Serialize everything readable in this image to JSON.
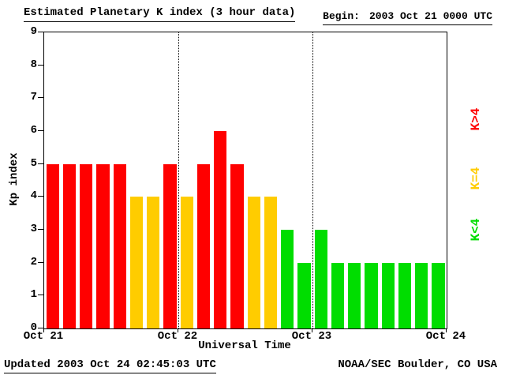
{
  "header": {
    "title": "Estimated Planetary K index (3 hour data)",
    "begin_label": "Begin:",
    "begin_value": "2003 Oct 21 0000 UTC"
  },
  "footer": {
    "updated_text": "Updated 2003 Oct 24 02:45:03 UTC",
    "attribution": "NOAA/SEC Boulder, CO USA"
  },
  "chart_data": {
    "type": "bar",
    "title": "Estimated Planetary K index (3 hour data)",
    "xlabel": "Universal Time",
    "ylabel": "Kp index",
    "ylim": [
      0,
      9
    ],
    "yticks": [
      0,
      1,
      2,
      3,
      4,
      5,
      6,
      7,
      8,
      9
    ],
    "xticks": [
      "Oct 21",
      "Oct 22",
      "Oct 23",
      "Oct 24"
    ],
    "bar_interval_hours": 3,
    "values": [
      5,
      5,
      5,
      5,
      5,
      4,
      4,
      5,
      4,
      5,
      6,
      5,
      4,
      4,
      3,
      2,
      3,
      2,
      2,
      2,
      2,
      2,
      2,
      2
    ],
    "colors": {
      "k_gt_4": "#ff0000",
      "k_eq_4": "#ffcc00",
      "k_lt_4": "#00dd00"
    },
    "legend": [
      {
        "label": "K>4",
        "color": "#ff0000"
      },
      {
        "label": "K=4",
        "color": "#ffcc00"
      },
      {
        "label": "K<4",
        "color": "#00dd00"
      }
    ],
    "grid": "dotted vertical lines at day boundaries",
    "legend_position": "right, rotated 90deg"
  }
}
